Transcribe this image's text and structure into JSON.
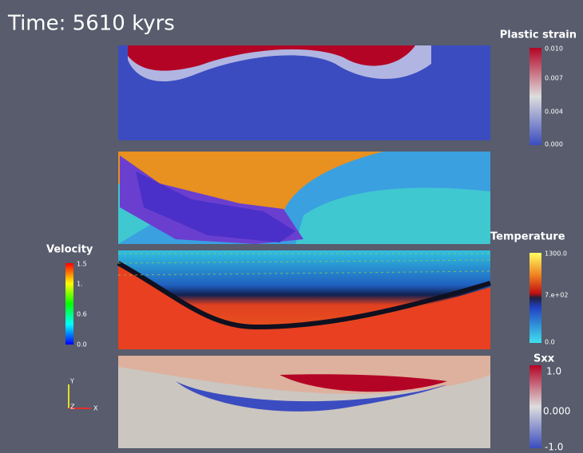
{
  "header": {
    "title": "Time: 5610 kyrs"
  },
  "colorbars": [
    {
      "title": "Plastic strain",
      "labels": [
        "0.010",
        "0.007",
        "0.004",
        "0.000"
      ]
    },
    {
      "title": "Velocity",
      "labels": [
        "1.5",
        "1.",
        "0.6",
        "0.0"
      ]
    },
    {
      "title": "Temperature",
      "labels": [
        "1300.0",
        "7.e+02",
        "0.0"
      ]
    },
    {
      "title": "Sxx",
      "labels": [
        "1.0",
        "0.000",
        "-1.0"
      ]
    }
  ],
  "axes": {
    "labels": [
      "Y",
      "Z",
      "X"
    ]
  }
}
